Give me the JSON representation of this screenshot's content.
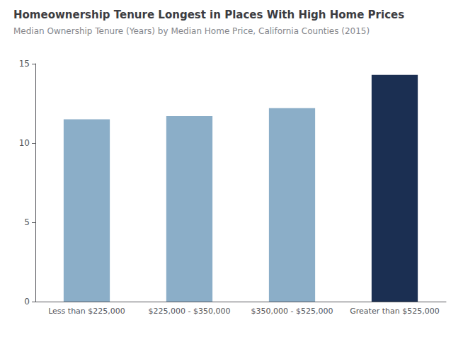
{
  "chart_data": {
    "type": "bar",
    "title": "Homeownership Tenure Longest in Places With High Home Prices",
    "subtitle": "Median Ownership Tenure (Years) by Median Home Price, California Counties (2015)",
    "categories": [
      "Less than $225,000",
      "$225,000 - $350,000",
      "$350,000 - $525,000",
      "Greater than $525,000"
    ],
    "values": [
      11.5,
      11.7,
      12.2,
      14.3
    ],
    "colors": [
      "#8baec8",
      "#8baec8",
      "#8baec8",
      "#1b2f52"
    ],
    "ylim": [
      0,
      15
    ],
    "yticks": [
      0,
      5,
      10,
      15
    ],
    "grid": false
  }
}
